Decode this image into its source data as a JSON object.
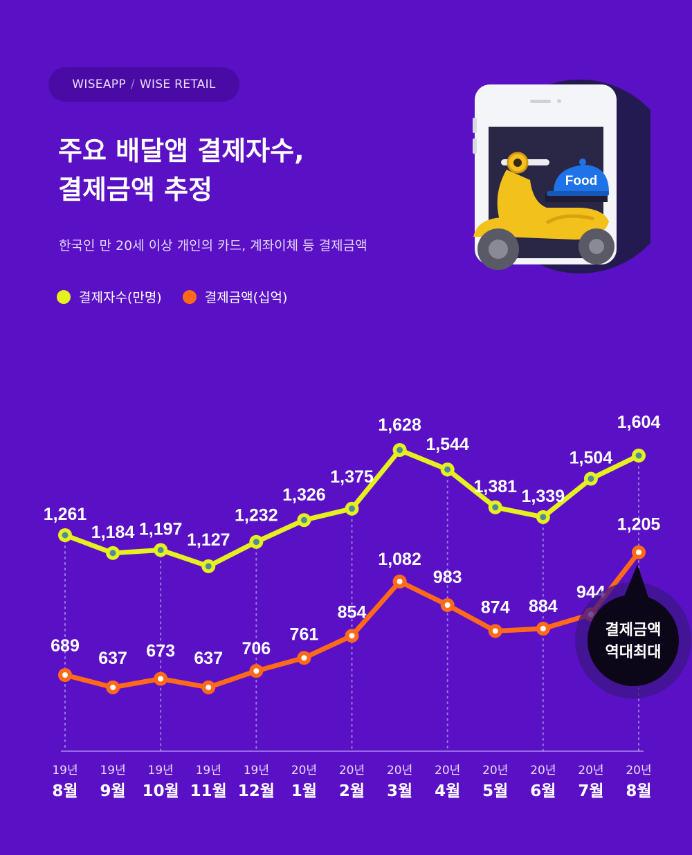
{
  "header": {
    "source_a": "WISEAPP",
    "source_sep": "/",
    "source_b": "WISE RETAIL",
    "title_line1": "주요 배달앱 결제자수,",
    "title_line2": "결제금액 추정",
    "subtitle": "한국인 만 20세 이상 개인의 카드, 계좌이체 등 결제금액"
  },
  "illustration": {
    "label": "Food"
  },
  "callout": {
    "line1": "결제금액",
    "line2": "역대최대"
  },
  "colors": {
    "background": "#5a10c4",
    "payers": "#e6f01e",
    "amount": "#ff6a1a",
    "marker_center": "#4d8a9b",
    "callout": "#0b0618"
  },
  "chart_data": {
    "type": "line",
    "categories": [
      {
        "year": "19년",
        "month": "8월"
      },
      {
        "year": "19년",
        "month": "9월"
      },
      {
        "year": "19년",
        "month": "10월"
      },
      {
        "year": "19년",
        "month": "11월"
      },
      {
        "year": "19년",
        "month": "12월"
      },
      {
        "year": "20년",
        "month": "1월"
      },
      {
        "year": "20년",
        "month": "2월"
      },
      {
        "year": "20년",
        "month": "3월"
      },
      {
        "year": "20년",
        "month": "4월"
      },
      {
        "year": "20년",
        "month": "5월"
      },
      {
        "year": "20년",
        "month": "6월"
      },
      {
        "year": "20년",
        "month": "7월"
      },
      {
        "year": "20년",
        "month": "8월"
      }
    ],
    "series": [
      {
        "name": "결제자수(만명)",
        "values": [
          1261,
          1184,
          1197,
          1127,
          1232,
          1326,
          1375,
          1628,
          1544,
          1381,
          1339,
          1504,
          1604
        ],
        "labels": [
          "1,261",
          "1,184",
          "1,197",
          "1,127",
          "1,232",
          "1,326",
          "1,375",
          "1,628",
          "1,544",
          "1,381",
          "1,339",
          "1,504",
          "1,604"
        ]
      },
      {
        "name": "결제금액(십억)",
        "values": [
          689,
          637,
          673,
          637,
          706,
          761,
          854,
          1082,
          983,
          874,
          884,
          944,
          1205
        ],
        "labels": [
          "689",
          "637",
          "673",
          "637",
          "706",
          "761",
          "854",
          "1,082",
          "983",
          "874",
          "884",
          "944",
          "1,205"
        ]
      }
    ],
    "gridlines": "dotted vertical guides at alternating months",
    "legend_position": "top-left"
  }
}
